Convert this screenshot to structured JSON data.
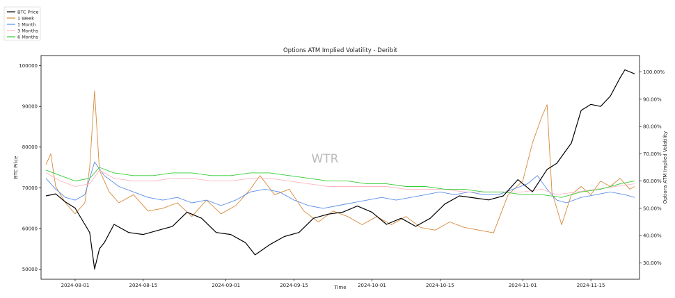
{
  "chart_data": {
    "type": "line",
    "title": "Options ATM Implied Volatility - Deribit",
    "xlabel": "Time",
    "ylabel_left": "BTC Price",
    "ylabel_right": "Options ATM Implied Volatility",
    "watermark": "WTR",
    "legend_position": "top-left (outside plot)",
    "x_range": [
      "2024-07-25",
      "2024-11-25"
    ],
    "x_ticks": [
      "2024-08-01",
      "2024-08-15",
      "2024-09-01",
      "2024-09-15",
      "2024-10-01",
      "2024-10-15",
      "2024-11-01",
      "2024-11-15"
    ],
    "y_left_range": [
      47500,
      102500
    ],
    "y_left_ticks": [
      50000,
      60000,
      70000,
      80000,
      90000,
      100000
    ],
    "y_right_range": [
      0.24,
      1.06
    ],
    "y_right_ticks": [
      "30.00%",
      "40.00%",
      "50.00%",
      "60.00%",
      "70.00%",
      "80.00%",
      "90.00%",
      "100.00%"
    ],
    "y_right_tick_values": [
      0.3,
      0.4,
      0.5,
      0.6,
      0.7,
      0.8,
      0.9,
      1.0
    ],
    "series": [
      {
        "name": "BTC Price",
        "axis": "left",
        "color": "#000000",
        "points": [
          [
            "2024-07-26",
            68000
          ],
          [
            "2024-07-28",
            68500
          ],
          [
            "2024-07-30",
            66500
          ],
          [
            "2024-08-01",
            65000
          ],
          [
            "2024-08-03",
            61000
          ],
          [
            "2024-08-04",
            59000
          ],
          [
            "2024-08-05",
            50000
          ],
          [
            "2024-08-06",
            55000
          ],
          [
            "2024-08-07",
            56500
          ],
          [
            "2024-08-09",
            61000
          ],
          [
            "2024-08-12",
            59000
          ],
          [
            "2024-08-15",
            58500
          ],
          [
            "2024-08-18",
            59500
          ],
          [
            "2024-08-21",
            60500
          ],
          [
            "2024-08-24",
            64000
          ],
          [
            "2024-08-27",
            62500
          ],
          [
            "2024-08-30",
            59000
          ],
          [
            "2024-09-02",
            58500
          ],
          [
            "2024-09-05",
            56500
          ],
          [
            "2024-09-07",
            53500
          ],
          [
            "2024-09-10",
            56000
          ],
          [
            "2024-09-13",
            58000
          ],
          [
            "2024-09-16",
            59000
          ],
          [
            "2024-09-19",
            62500
          ],
          [
            "2024-09-22",
            63500
          ],
          [
            "2024-09-25",
            64000
          ],
          [
            "2024-09-28",
            65500
          ],
          [
            "2024-10-01",
            64000
          ],
          [
            "2024-10-04",
            61000
          ],
          [
            "2024-10-07",
            62500
          ],
          [
            "2024-10-10",
            60500
          ],
          [
            "2024-10-13",
            62500
          ],
          [
            "2024-10-16",
            66000
          ],
          [
            "2024-10-19",
            68000
          ],
          [
            "2024-10-22",
            67500
          ],
          [
            "2024-10-25",
            67000
          ],
          [
            "2024-10-28",
            68000
          ],
          [
            "2024-10-31",
            72000
          ],
          [
            "2024-11-03",
            69000
          ],
          [
            "2024-11-06",
            74500
          ],
          [
            "2024-11-08",
            76000
          ],
          [
            "2024-11-11",
            81000
          ],
          [
            "2024-11-13",
            89000
          ],
          [
            "2024-11-15",
            90500
          ],
          [
            "2024-11-17",
            90000
          ],
          [
            "2024-11-19",
            92500
          ],
          [
            "2024-11-21",
            97000
          ],
          [
            "2024-11-22",
            99000
          ],
          [
            "2024-11-24",
            98000
          ]
        ]
      },
      {
        "name": "1 Week",
        "axis": "right",
        "color": "#d6893a",
        "points": [
          [
            "2024-07-26",
            0.66
          ],
          [
            "2024-07-27",
            0.7
          ],
          [
            "2024-07-28",
            0.58
          ],
          [
            "2024-07-30",
            0.52
          ],
          [
            "2024-08-01",
            0.48
          ],
          [
            "2024-08-03",
            0.52
          ],
          [
            "2024-08-04",
            0.65
          ],
          [
            "2024-08-05",
            0.93
          ],
          [
            "2024-08-06",
            0.64
          ],
          [
            "2024-08-08",
            0.56
          ],
          [
            "2024-08-10",
            0.52
          ],
          [
            "2024-08-13",
            0.55
          ],
          [
            "2024-08-16",
            0.49
          ],
          [
            "2024-08-19",
            0.5
          ],
          [
            "2024-08-22",
            0.52
          ],
          [
            "2024-08-25",
            0.47
          ],
          [
            "2024-08-28",
            0.53
          ],
          [
            "2024-08-31",
            0.48
          ],
          [
            "2024-09-03",
            0.51
          ],
          [
            "2024-09-06",
            0.57
          ],
          [
            "2024-09-08",
            0.62
          ],
          [
            "2024-09-11",
            0.55
          ],
          [
            "2024-09-14",
            0.57
          ],
          [
            "2024-09-17",
            0.49
          ],
          [
            "2024-09-20",
            0.45
          ],
          [
            "2024-09-23",
            0.49
          ],
          [
            "2024-09-26",
            0.47
          ],
          [
            "2024-09-29",
            0.44
          ],
          [
            "2024-10-02",
            0.47
          ],
          [
            "2024-10-05",
            0.44
          ],
          [
            "2024-10-08",
            0.47
          ],
          [
            "2024-10-11",
            0.43
          ],
          [
            "2024-10-14",
            0.42
          ],
          [
            "2024-10-17",
            0.45
          ],
          [
            "2024-10-20",
            0.43
          ],
          [
            "2024-10-23",
            0.42
          ],
          [
            "2024-10-26",
            0.41
          ],
          [
            "2024-10-29",
            0.55
          ],
          [
            "2024-11-01",
            0.6
          ],
          [
            "2024-11-03",
            0.74
          ],
          [
            "2024-11-05",
            0.84
          ],
          [
            "2024-11-06",
            0.88
          ],
          [
            "2024-11-07",
            0.56
          ],
          [
            "2024-11-09",
            0.44
          ],
          [
            "2024-11-11",
            0.55
          ],
          [
            "2024-11-13",
            0.58
          ],
          [
            "2024-11-15",
            0.55
          ],
          [
            "2024-11-17",
            0.6
          ],
          [
            "2024-11-19",
            0.58
          ],
          [
            "2024-11-21",
            0.61
          ],
          [
            "2024-11-23",
            0.57
          ],
          [
            "2024-11-24",
            0.58
          ]
        ]
      },
      {
        "name": "1 Month",
        "axis": "right",
        "color": "#5b8ee6",
        "points": [
          [
            "2024-07-26",
            0.61
          ],
          [
            "2024-07-28",
            0.57
          ],
          [
            "2024-07-30",
            0.54
          ],
          [
            "2024-08-01",
            0.53
          ],
          [
            "2024-08-03",
            0.55
          ],
          [
            "2024-08-05",
            0.67
          ],
          [
            "2024-08-07",
            0.62
          ],
          [
            "2024-08-10",
            0.58
          ],
          [
            "2024-08-13",
            0.56
          ],
          [
            "2024-08-16",
            0.54
          ],
          [
            "2024-08-19",
            0.53
          ],
          [
            "2024-08-22",
            0.54
          ],
          [
            "2024-08-25",
            0.52
          ],
          [
            "2024-08-28",
            0.53
          ],
          [
            "2024-08-31",
            0.51
          ],
          [
            "2024-09-03",
            0.53
          ],
          [
            "2024-09-06",
            0.56
          ],
          [
            "2024-09-09",
            0.57
          ],
          [
            "2024-09-12",
            0.56
          ],
          [
            "2024-09-15",
            0.53
          ],
          [
            "2024-09-18",
            0.51
          ],
          [
            "2024-09-21",
            0.5
          ],
          [
            "2024-09-24",
            0.51
          ],
          [
            "2024-09-27",
            0.52
          ],
          [
            "2024-09-30",
            0.53
          ],
          [
            "2024-10-03",
            0.54
          ],
          [
            "2024-10-06",
            0.53
          ],
          [
            "2024-10-09",
            0.54
          ],
          [
            "2024-10-12",
            0.55
          ],
          [
            "2024-10-15",
            0.56
          ],
          [
            "2024-10-18",
            0.55
          ],
          [
            "2024-10-21",
            0.56
          ],
          [
            "2024-10-24",
            0.55
          ],
          [
            "2024-10-27",
            0.55
          ],
          [
            "2024-10-30",
            0.57
          ],
          [
            "2024-11-02",
            0.59
          ],
          [
            "2024-11-04",
            0.62
          ],
          [
            "2024-11-06",
            0.57
          ],
          [
            "2024-11-08",
            0.53
          ],
          [
            "2024-11-10",
            0.52
          ],
          [
            "2024-11-13",
            0.54
          ],
          [
            "2024-11-16",
            0.55
          ],
          [
            "2024-11-19",
            0.56
          ],
          [
            "2024-11-22",
            0.55
          ],
          [
            "2024-11-24",
            0.54
          ]
        ]
      },
      {
        "name": "3 Months",
        "axis": "right",
        "color": "#ffb6c1",
        "points": [
          [
            "2024-07-26",
            0.63
          ],
          [
            "2024-07-29",
            0.6
          ],
          [
            "2024-08-01",
            0.58
          ],
          [
            "2024-08-04",
            0.59
          ],
          [
            "2024-08-06",
            0.64
          ],
          [
            "2024-08-09",
            0.61
          ],
          [
            "2024-08-13",
            0.6
          ],
          [
            "2024-08-17",
            0.6
          ],
          [
            "2024-08-21",
            0.61
          ],
          [
            "2024-08-25",
            0.61
          ],
          [
            "2024-08-29",
            0.6
          ],
          [
            "2024-09-02",
            0.6
          ],
          [
            "2024-09-06",
            0.61
          ],
          [
            "2024-09-10",
            0.61
          ],
          [
            "2024-09-14",
            0.6
          ],
          [
            "2024-09-18",
            0.59
          ],
          [
            "2024-09-22",
            0.58
          ],
          [
            "2024-09-26",
            0.58
          ],
          [
            "2024-09-30",
            0.58
          ],
          [
            "2024-10-04",
            0.58
          ],
          [
            "2024-10-08",
            0.57
          ],
          [
            "2024-10-12",
            0.57
          ],
          [
            "2024-10-16",
            0.57
          ],
          [
            "2024-10-20",
            0.56
          ],
          [
            "2024-10-24",
            0.56
          ],
          [
            "2024-10-28",
            0.56
          ],
          [
            "2024-11-01",
            0.56
          ],
          [
            "2024-11-05",
            0.57
          ],
          [
            "2024-11-08",
            0.55
          ],
          [
            "2024-11-12",
            0.56
          ],
          [
            "2024-11-16",
            0.57
          ],
          [
            "2024-11-20",
            0.58
          ],
          [
            "2024-11-24",
            0.59
          ]
        ]
      },
      {
        "name": "6 Months",
        "axis": "right",
        "color": "#33cc33",
        "points": [
          [
            "2024-07-26",
            0.64
          ],
          [
            "2024-07-29",
            0.62
          ],
          [
            "2024-08-01",
            0.6
          ],
          [
            "2024-08-04",
            0.61
          ],
          [
            "2024-08-06",
            0.65
          ],
          [
            "2024-08-09",
            0.63
          ],
          [
            "2024-08-13",
            0.62
          ],
          [
            "2024-08-17",
            0.62
          ],
          [
            "2024-08-21",
            0.63
          ],
          [
            "2024-08-25",
            0.63
          ],
          [
            "2024-08-29",
            0.62
          ],
          [
            "2024-09-02",
            0.62
          ],
          [
            "2024-09-06",
            0.63
          ],
          [
            "2024-09-10",
            0.63
          ],
          [
            "2024-09-14",
            0.62
          ],
          [
            "2024-09-18",
            0.61
          ],
          [
            "2024-09-22",
            0.6
          ],
          [
            "2024-09-26",
            0.6
          ],
          [
            "2024-09-30",
            0.59
          ],
          [
            "2024-10-04",
            0.59
          ],
          [
            "2024-10-08",
            0.58
          ],
          [
            "2024-10-12",
            0.58
          ],
          [
            "2024-10-16",
            0.57
          ],
          [
            "2024-10-20",
            0.57
          ],
          [
            "2024-10-24",
            0.56
          ],
          [
            "2024-10-28",
            0.56
          ],
          [
            "2024-11-01",
            0.55
          ],
          [
            "2024-11-05",
            0.55
          ],
          [
            "2024-11-09",
            0.54
          ],
          [
            "2024-11-13",
            0.56
          ],
          [
            "2024-11-17",
            0.57
          ],
          [
            "2024-11-21",
            0.59
          ],
          [
            "2024-11-24",
            0.6
          ]
        ]
      }
    ]
  }
}
